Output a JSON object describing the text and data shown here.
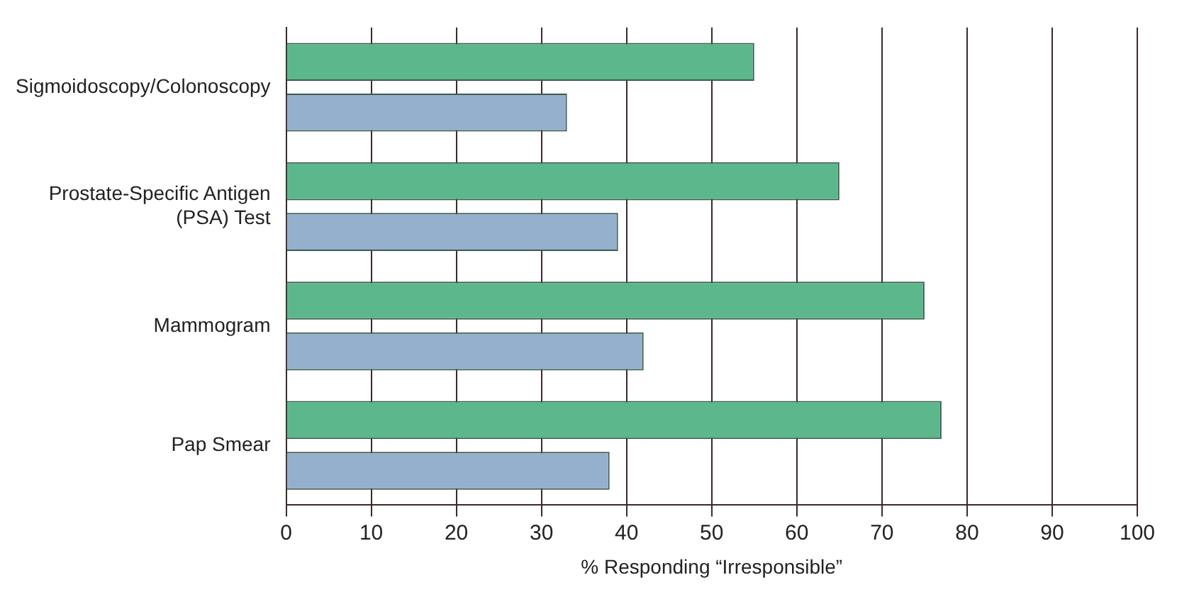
{
  "chart_data": {
    "type": "bar",
    "orientation": "horizontal",
    "xlabel": "% Responding “Irresponsible”",
    "categories": [
      "Sigmoidoscopy/Colonoscopy",
      "Prostate-Specific Antigen (PSA) Test",
      "Mammogram",
      "Pap Smear"
    ],
    "series": [
      {
        "color": "#5cb88c",
        "values": [
          55,
          65,
          75,
          77
        ]
      },
      {
        "color": "#94b0cc",
        "values": [
          33,
          39,
          42,
          38
        ]
      }
    ],
    "xlim": [
      0,
      100
    ],
    "xticks": [
      0,
      10,
      20,
      30,
      40,
      50,
      60,
      70,
      80,
      90,
      100
    ],
    "grid": "x",
    "legend": false
  }
}
